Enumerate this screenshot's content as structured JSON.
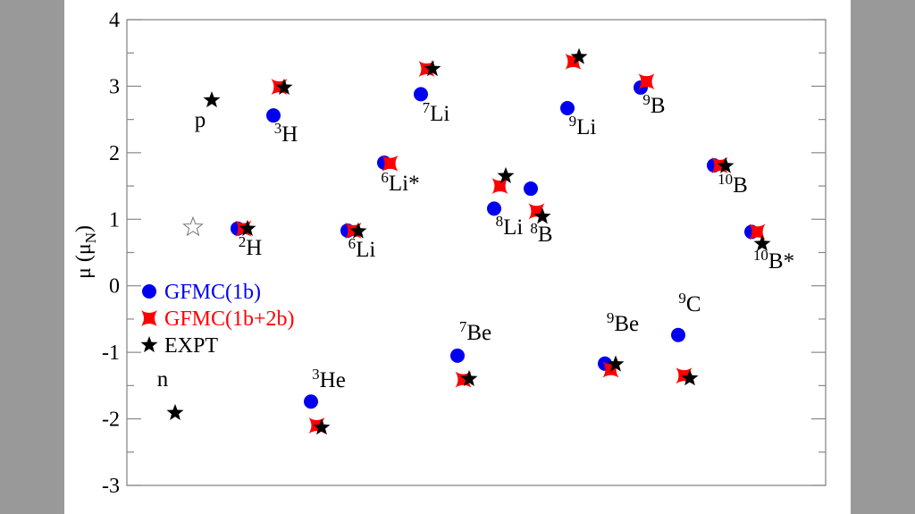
{
  "chart_data": {
    "type": "scatter",
    "title": "",
    "xlabel": "",
    "ylabel": "μ (μ",
    "ylabel_sub": "N",
    "ylabel_close": ")",
    "ylim": [
      -3,
      4
    ],
    "yticks": [
      "-3",
      "-2",
      "-1",
      "0",
      "1",
      "2",
      "3",
      "4"
    ],
    "grid": false,
    "legend_placement": "center-left",
    "colors": {
      "gfmc_1b": "#0000ee",
      "gfmc_1b2b": "#ff0000",
      "expt": "#000000",
      "frame": "#888888",
      "background_bars": "#999999"
    },
    "series": [
      {
        "key": "gfmc_1b",
        "name": "GFMC(1b)",
        "marker": "circle"
      },
      {
        "key": "gfmc_1b2b",
        "name": "GFMC(1b+2b)",
        "marker": "four-point-star"
      },
      {
        "key": "expt",
        "name": "EXPT",
        "marker": "five-point-star"
      }
    ],
    "nuclei": [
      {
        "mass": "",
        "symbol": "n",
        "expt": -1.91
      },
      {
        "mass": "",
        "symbol": "p",
        "expt": 2.79,
        "hollow_star": 0.88
      },
      {
        "mass": "2",
        "symbol": "H",
        "gfmc_1b": 0.86,
        "gfmc_1b2b": 0.86,
        "expt": 0.857
      },
      {
        "mass": "3",
        "symbol": "H",
        "gfmc_1b": 2.56,
        "gfmc_1b2b": 2.99,
        "expt": 2.98
      },
      {
        "mass": "3",
        "symbol": "He",
        "gfmc_1b": -1.74,
        "gfmc_1b2b": -2.1,
        "expt": -2.13
      },
      {
        "mass": "6",
        "symbol": "Li",
        "gfmc_1b": 0.83,
        "gfmc_1b2b": 0.83,
        "expt": 0.82
      },
      {
        "mass": "6",
        "symbol": "Li*",
        "gfmc_1b": 1.85,
        "gfmc_1b2b": 1.84
      },
      {
        "mass": "7",
        "symbol": "Li",
        "gfmc_1b": 2.88,
        "gfmc_1b2b": 3.26,
        "expt": 3.26
      },
      {
        "mass": "7",
        "symbol": "Be",
        "gfmc_1b": -1.05,
        "gfmc_1b2b": -1.41,
        "expt": -1.4
      },
      {
        "mass": "8",
        "symbol": "Li",
        "gfmc_1b": 1.16,
        "gfmc_1b2b": 1.5,
        "expt": 1.65
      },
      {
        "mass": "8",
        "symbol": "B",
        "gfmc_1b": 1.46,
        "gfmc_1b2b": 1.12,
        "expt": 1.04
      },
      {
        "mass": "9",
        "symbol": "Li",
        "gfmc_1b": 2.67,
        "gfmc_1b2b": 3.37,
        "expt": 3.44
      },
      {
        "mass": "9",
        "symbol": "Be",
        "gfmc_1b": -1.17,
        "gfmc_1b2b": -1.26,
        "expt": -1.18
      },
      {
        "mass": "9",
        "symbol": "B",
        "gfmc_1b": 2.98,
        "gfmc_1b2b": 3.07
      },
      {
        "mass": "9",
        "symbol": "C",
        "gfmc_1b": -0.74,
        "gfmc_1b2b": -1.35,
        "expt": -1.39
      },
      {
        "mass": "10",
        "symbol": "B",
        "gfmc_1b": 1.81,
        "gfmc_1b2b": 1.81,
        "expt": 1.8
      },
      {
        "mass": "10",
        "symbol": "B*",
        "gfmc_1b": 0.81,
        "gfmc_1b2b": 0.81,
        "expt": 0.63
      }
    ]
  }
}
